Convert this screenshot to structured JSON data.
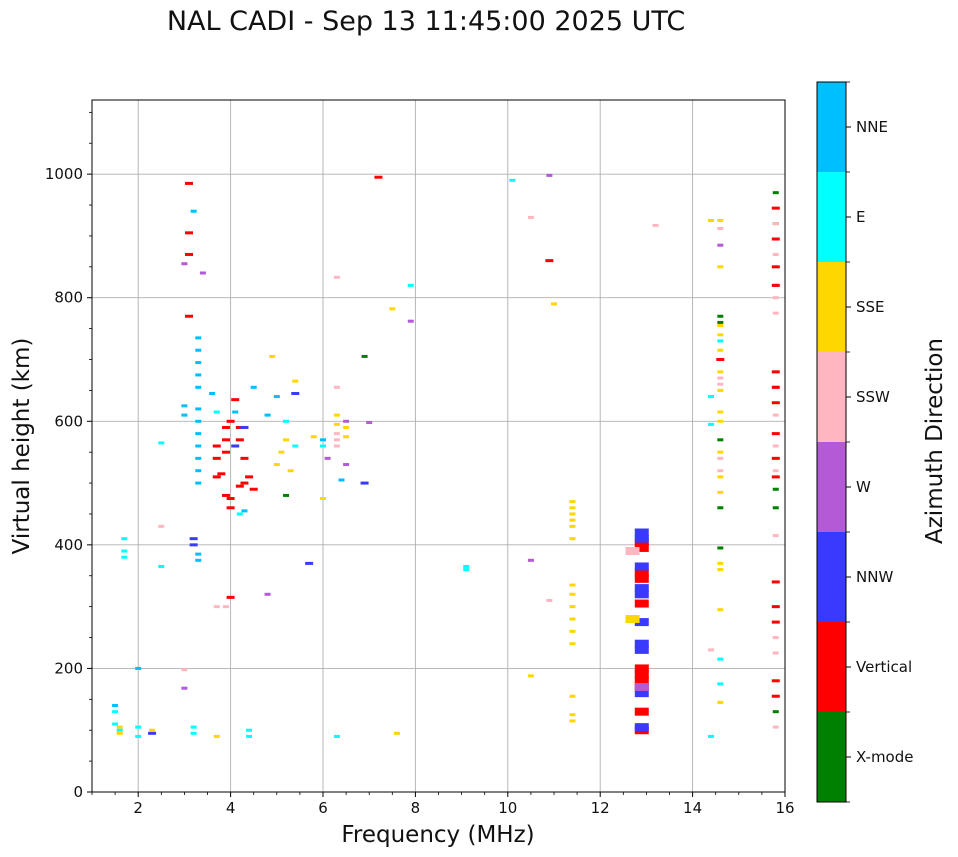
{
  "chart_data": {
    "type": "scatter",
    "title": "NAL CADI - Sep 13 11:45:00 2025 UTC",
    "xlabel": "Frequency (MHz)",
    "ylabel": "Virtual height (km)",
    "xlim": [
      1,
      16
    ],
    "ylim": [
      0,
      1120
    ],
    "xticks": [
      2,
      4,
      6,
      8,
      10,
      12,
      14,
      16
    ],
    "yticks": [
      0,
      200,
      400,
      600,
      800,
      1000
    ],
    "grid": true,
    "colorbar": {
      "label": "Azimuth Direction",
      "placement": "right",
      "categories": [
        {
          "name": "X-mode",
          "color": "#008000"
        },
        {
          "name": "Vertical",
          "color": "#ff0000"
        },
        {
          "name": "NNW",
          "color": "#3a3aff"
        },
        {
          "name": "W",
          "color": "#b45ad6"
        },
        {
          "name": "SSW",
          "color": "#ffb6c1"
        },
        {
          "name": "SSE",
          "color": "#ffd700"
        },
        {
          "name": "E",
          "color": "#00ffff"
        },
        {
          "name": "NNE",
          "color": "#00bfff"
        }
      ]
    },
    "series": [
      {
        "name": "X-mode",
        "points": [
          [
            14.6,
            770
          ],
          [
            14.6,
            760
          ],
          [
            14.6,
            570
          ],
          [
            14.6,
            460
          ],
          [
            14.6,
            395
          ],
          [
            15.8,
            970
          ],
          [
            15.8,
            920
          ],
          [
            15.8,
            820
          ],
          [
            15.8,
            655
          ],
          [
            15.8,
            490
          ],
          [
            15.8,
            460
          ],
          [
            15.8,
            130
          ],
          [
            5.2,
            480
          ],
          [
            6.9,
            705
          ]
        ]
      },
      {
        "name": "Vertical",
        "points": [
          [
            3.1,
            985
          ],
          [
            3.1,
            905
          ],
          [
            3.1,
            870
          ],
          [
            3.1,
            770
          ],
          [
            3.9,
            590
          ],
          [
            3.9,
            570
          ],
          [
            3.9,
            550
          ],
          [
            3.7,
            560
          ],
          [
            3.7,
            540
          ],
          [
            3.8,
            515
          ],
          [
            3.7,
            510
          ],
          [
            3.9,
            480
          ],
          [
            4.0,
            475
          ],
          [
            4.0,
            460
          ],
          [
            4.2,
            590
          ],
          [
            4.2,
            570
          ],
          [
            4.3,
            540
          ],
          [
            4.4,
            510
          ],
          [
            4.3,
            500
          ],
          [
            4.2,
            495
          ],
          [
            4.1,
            635
          ],
          [
            4.0,
            600
          ],
          [
            4.5,
            490
          ],
          [
            4.0,
            315
          ],
          [
            10.9,
            860
          ],
          [
            12.9,
            405
          ],
          [
            12.9,
            395
          ],
          [
            12.9,
            355
          ],
          [
            12.9,
            345
          ],
          [
            12.9,
            305
          ],
          [
            12.9,
            200
          ],
          [
            12.9,
            190
          ],
          [
            12.9,
            180
          ],
          [
            12.9,
            170
          ],
          [
            12.9,
            130
          ],
          [
            12.9,
            100
          ],
          [
            14.6,
            700
          ],
          [
            15.8,
            945
          ],
          [
            15.8,
            895
          ],
          [
            15.8,
            850
          ],
          [
            15.8,
            820
          ],
          [
            15.8,
            680
          ],
          [
            15.8,
            655
          ],
          [
            15.8,
            630
          ],
          [
            15.8,
            580
          ],
          [
            15.8,
            540
          ],
          [
            15.8,
            510
          ],
          [
            15.8,
            340
          ],
          [
            15.8,
            300
          ],
          [
            15.8,
            275
          ],
          [
            15.8,
            180
          ],
          [
            15.8,
            155
          ],
          [
            7.2,
            995
          ]
        ]
      },
      {
        "name": "NNW",
        "points": [
          [
            12.9,
            420
          ],
          [
            12.9,
            410
          ],
          [
            12.9,
            365
          ],
          [
            12.9,
            330
          ],
          [
            12.9,
            320
          ],
          [
            12.9,
            275
          ],
          [
            12.9,
            240
          ],
          [
            12.9,
            230
          ],
          [
            12.9,
            160
          ],
          [
            12.9,
            105
          ],
          [
            3.2,
            410
          ],
          [
            3.2,
            400
          ],
          [
            5.7,
            370
          ],
          [
            6.9,
            500
          ],
          [
            2.3,
            95
          ],
          [
            4.1,
            560
          ],
          [
            4.3,
            590
          ],
          [
            5.4,
            645
          ]
        ]
      },
      {
        "name": "W",
        "points": [
          [
            3.0,
            855
          ],
          [
            3.4,
            840
          ],
          [
            7.9,
            762
          ],
          [
            6.5,
            600
          ],
          [
            6.5,
            530
          ],
          [
            6.1,
            540
          ],
          [
            7.0,
            598
          ],
          [
            10.9,
            998
          ],
          [
            10.5,
            375
          ],
          [
            3.0,
            168
          ],
          [
            4.8,
            320
          ],
          [
            14.6,
            885
          ],
          [
            12.9,
            170
          ]
        ]
      },
      {
        "name": "SSW",
        "points": [
          [
            10.5,
            930
          ],
          [
            13.2,
            917
          ],
          [
            14.6,
            912
          ],
          [
            15.8,
            920
          ],
          [
            15.8,
            870
          ],
          [
            15.8,
            800
          ],
          [
            15.8,
            775
          ],
          [
            15.8,
            610
          ],
          [
            15.8,
            560
          ],
          [
            15.8,
            520
          ],
          [
            15.8,
            415
          ],
          [
            15.8,
            250
          ],
          [
            15.8,
            225
          ],
          [
            15.8,
            105
          ],
          [
            14.6,
            670
          ],
          [
            14.6,
            660
          ],
          [
            14.6,
            540
          ],
          [
            14.6,
            520
          ],
          [
            6.3,
            833
          ],
          [
            6.3,
            655
          ],
          [
            6.3,
            580
          ],
          [
            6.3,
            570
          ],
          [
            6.3,
            560
          ],
          [
            12.7,
            390
          ],
          [
            12.7,
            280
          ],
          [
            14.4,
            230
          ],
          [
            10.9,
            310
          ],
          [
            3.7,
            300
          ],
          [
            3.9,
            300
          ],
          [
            2.5,
            430
          ],
          [
            3.0,
            198
          ]
        ]
      },
      {
        "name": "SSE",
        "points": [
          [
            11.4,
            470
          ],
          [
            11.4,
            460
          ],
          [
            11.4,
            450
          ],
          [
            11.4,
            440
          ],
          [
            11.4,
            430
          ],
          [
            11.4,
            410
          ],
          [
            11.4,
            335
          ],
          [
            11.4,
            320
          ],
          [
            11.4,
            300
          ],
          [
            11.4,
            280
          ],
          [
            11.4,
            260
          ],
          [
            11.4,
            240
          ],
          [
            11.4,
            155
          ],
          [
            11.4,
            125
          ],
          [
            11.4,
            115
          ],
          [
            14.6,
            925
          ],
          [
            14.6,
            850
          ],
          [
            14.6,
            755
          ],
          [
            14.6,
            740
          ],
          [
            14.6,
            715
          ],
          [
            14.6,
            680
          ],
          [
            14.6,
            650
          ],
          [
            14.6,
            615
          ],
          [
            14.6,
            600
          ],
          [
            14.6,
            550
          ],
          [
            14.6,
            510
          ],
          [
            14.6,
            485
          ],
          [
            14.6,
            370
          ],
          [
            14.6,
            360
          ],
          [
            14.6,
            295
          ],
          [
            14.6,
            145
          ],
          [
            14.4,
            925
          ],
          [
            11.0,
            790
          ],
          [
            7.5,
            782
          ],
          [
            10.5,
            188
          ],
          [
            7.6,
            95
          ],
          [
            12.7,
            280
          ],
          [
            6.5,
            590
          ],
          [
            6.5,
            575
          ],
          [
            6.3,
            610
          ],
          [
            6.3,
            595
          ],
          [
            6.0,
            475
          ],
          [
            5.4,
            665
          ],
          [
            5.2,
            570
          ],
          [
            5.1,
            550
          ],
          [
            5.0,
            530
          ],
          [
            5.3,
            520
          ],
          [
            4.9,
            705
          ],
          [
            1.6,
            105
          ],
          [
            1.6,
            95
          ],
          [
            2.3,
            100
          ],
          [
            3.7,
            90
          ],
          [
            5.8,
            575
          ]
        ]
      },
      {
        "name": "E",
        "points": [
          [
            10.1,
            990
          ],
          [
            7.9,
            820
          ],
          [
            9.1,
            365
          ],
          [
            9.1,
            360
          ],
          [
            14.4,
            640
          ],
          [
            14.4,
            595
          ],
          [
            14.6,
            730
          ],
          [
            14.6,
            215
          ],
          [
            14.6,
            175
          ],
          [
            14.4,
            90
          ],
          [
            6.3,
            90
          ],
          [
            2.5,
            565
          ],
          [
            2.5,
            365
          ],
          [
            1.7,
            390
          ],
          [
            1.7,
            380
          ],
          [
            1.7,
            410
          ],
          [
            1.5,
            110
          ],
          [
            1.6,
            100
          ],
          [
            4.4,
            90
          ],
          [
            4.4,
            100
          ],
          [
            3.2,
            95
          ],
          [
            3.2,
            105
          ],
          [
            2.0,
            90
          ],
          [
            2.0,
            105
          ],
          [
            1.5,
            130
          ],
          [
            5.4,
            560
          ],
          [
            5.2,
            600
          ],
          [
            6.0,
            560
          ],
          [
            3.7,
            615
          ],
          [
            4.2,
            450
          ]
        ]
      },
      {
        "name": "NNE",
        "points": [
          [
            3.2,
            940
          ],
          [
            3.3,
            735
          ],
          [
            3.3,
            715
          ],
          [
            3.3,
            695
          ],
          [
            3.3,
            675
          ],
          [
            3.3,
            655
          ],
          [
            3.3,
            620
          ],
          [
            3.3,
            600
          ],
          [
            3.3,
            580
          ],
          [
            3.3,
            560
          ],
          [
            3.3,
            540
          ],
          [
            3.3,
            520
          ],
          [
            3.3,
            500
          ],
          [
            3.3,
            385
          ],
          [
            3.3,
            375
          ],
          [
            3.0,
            610
          ],
          [
            3.0,
            625
          ],
          [
            3.6,
            645
          ],
          [
            4.1,
            615
          ],
          [
            4.5,
            655
          ],
          [
            4.8,
            610
          ],
          [
            5.0,
            640
          ],
          [
            6.0,
            570
          ],
          [
            6.4,
            505
          ],
          [
            1.5,
            140
          ],
          [
            2.0,
            200
          ],
          [
            4.3,
            455
          ]
        ]
      }
    ]
  }
}
